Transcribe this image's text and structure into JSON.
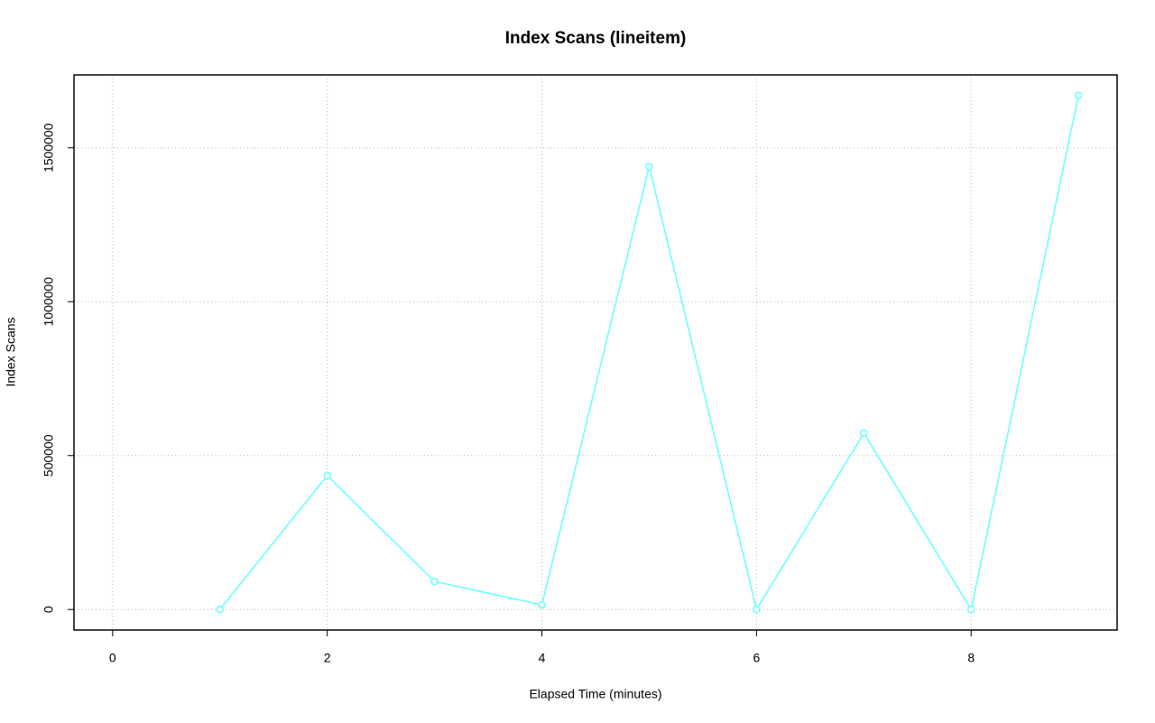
{
  "chart_data": {
    "type": "line",
    "title": "Index Scans (lineitem)",
    "x_label": "Elapsed Time (minutes)",
    "y_label": "Index Scans",
    "x": [
      1,
      2,
      3,
      4,
      5,
      6,
      7,
      8,
      9
    ],
    "series": [
      {
        "name": "lineitem",
        "color": "#66ffff",
        "values": [
          0,
          435000,
          91000,
          15000,
          1439000,
          0,
          573000,
          0,
          1670000
        ]
      }
    ],
    "xlim": [
      -0.36,
      9.36
    ],
    "xticks": [
      0,
      2,
      4,
      6,
      8
    ],
    "ylim": [
      -66800,
      1736800
    ],
    "yticks": [
      0,
      500000,
      1000000,
      1500000
    ],
    "grid": true
  }
}
